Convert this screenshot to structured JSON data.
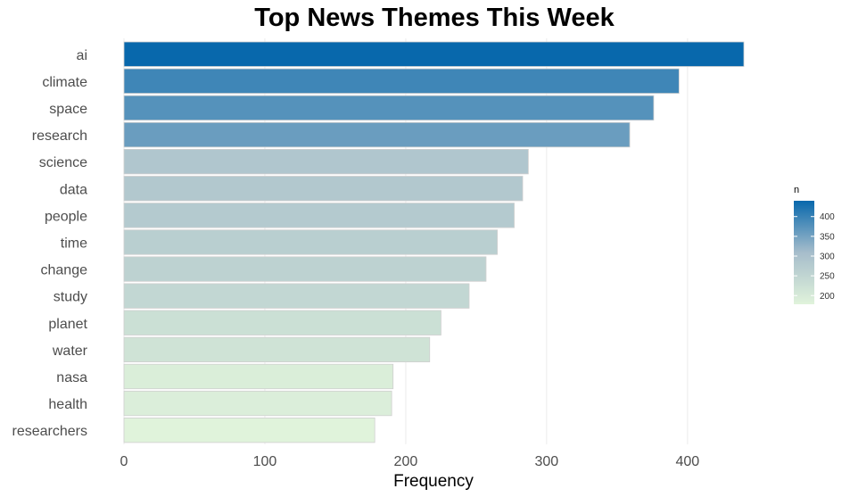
{
  "chart_data": {
    "type": "bar",
    "orientation": "horizontal",
    "title": "Top News Themes This Week",
    "xlabel": "Frequency",
    "ylabel": "",
    "categories": [
      "ai",
      "climate",
      "space",
      "research",
      "science",
      "data",
      "people",
      "time",
      "change",
      "study",
      "planet",
      "water",
      "nasa",
      "health",
      "researchers"
    ],
    "values": [
      440,
      394,
      376,
      359,
      287,
      283,
      277,
      265,
      257,
      245,
      225,
      217,
      191,
      190,
      178
    ],
    "xlim": [
      0,
      440
    ],
    "xticks": [
      0,
      100,
      200,
      300,
      400
    ],
    "xtick_labels": [
      "0",
      "100",
      "200",
      "300",
      "400"
    ],
    "grid": true,
    "legend": {
      "title": "n",
      "position": "right",
      "ticks": [
        200,
        250,
        300,
        350,
        400
      ],
      "tick_labels": [
        "200",
        "250",
        "300",
        "350",
        "400"
      ],
      "range": [
        178,
        440
      ],
      "color_low": "#e0f3db",
      "color_mid": "#a6bdcb",
      "color_high": "#0868ac"
    }
  }
}
